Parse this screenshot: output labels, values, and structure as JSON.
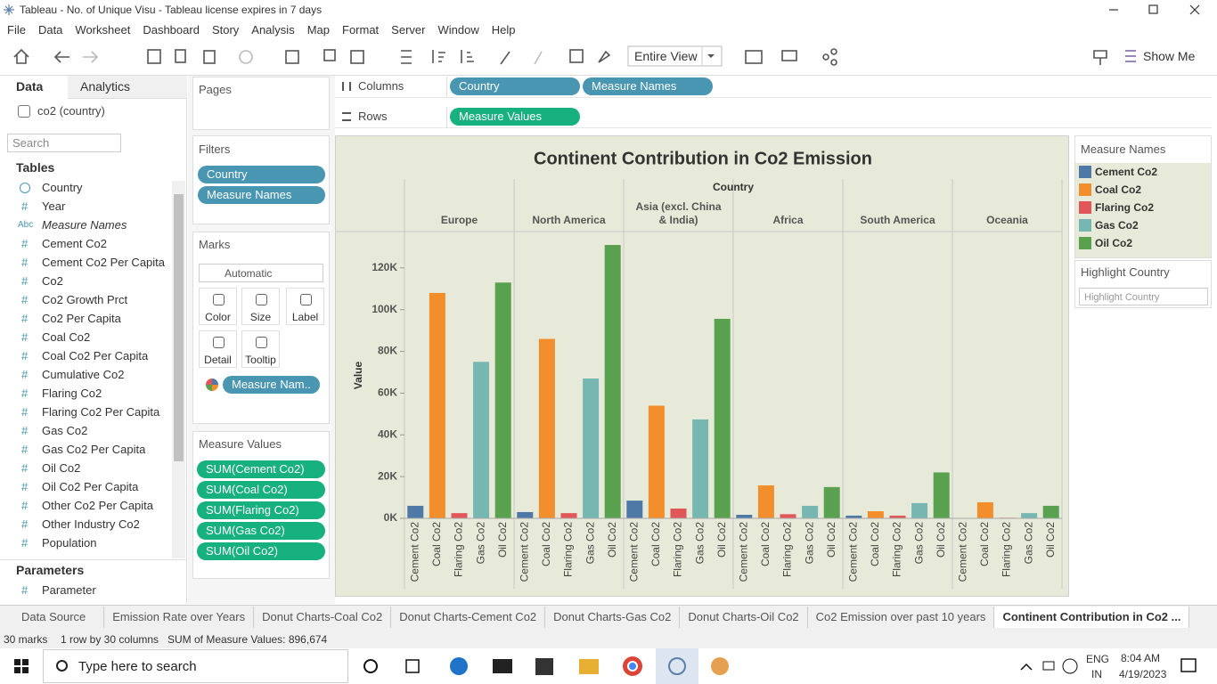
{
  "window": {
    "title": "Tableau - No. of Unique Visu - Tableau license expires in 7 days"
  },
  "menu": [
    "File",
    "Data",
    "Worksheet",
    "Dashboard",
    "Story",
    "Analysis",
    "Map",
    "Format",
    "Server",
    "Window",
    "Help"
  ],
  "toolbar": {
    "view": "Entire View",
    "show_me": "Show Me"
  },
  "data_pane": {
    "tabs": [
      "Data",
      "Analytics"
    ],
    "source": "co2 (country)",
    "search": "Search",
    "tables": "Tables",
    "fields": [
      {
        "name": "Country"
      },
      {
        "icon": "#",
        "name": "Year"
      },
      {
        "icon": "Abc",
        "name": "Measure Names"
      },
      {
        "icon": "#",
        "name": "Cement Co2"
      },
      {
        "icon": "#",
        "name": "Cement Co2 Per Capita"
      },
      {
        "icon": "#",
        "name": "Co2"
      },
      {
        "icon": "#",
        "name": "Co2 Growth Prct"
      },
      {
        "icon": "#",
        "name": "Co2 Per Capita"
      },
      {
        "icon": "#",
        "name": "Coal Co2"
      },
      {
        "icon": "#",
        "name": "Coal Co2 Per Capita"
      },
      {
        "icon": "#",
        "name": "Cumulative Co2"
      },
      {
        "icon": "#",
        "name": "Flaring Co2"
      },
      {
        "icon": "#",
        "name": "Flaring Co2 Per Capita"
      },
      {
        "icon": "#",
        "name": "Gas Co2"
      },
      {
        "icon": "#",
        "name": "Gas Co2 Per Capita"
      },
      {
        "icon": "#",
        "name": "Oil Co2"
      },
      {
        "icon": "#",
        "name": "Oil Co2 Per Capita"
      },
      {
        "icon": "#",
        "name": "Other Co2 Per Capita"
      },
      {
        "icon": "#",
        "name": "Other Industry Co2"
      },
      {
        "icon": "#",
        "name": "Population"
      }
    ],
    "parameters_heading": "Parameters",
    "parameters": [
      {
        "icon": "#",
        "name": "Parameter"
      }
    ]
  },
  "pages_shelf": {
    "title": "Pages"
  },
  "filters_shelf": {
    "title": "Filters",
    "pills": [
      "Country",
      "Measure Names"
    ]
  },
  "marks_card": {
    "title": "Marks",
    "mark_type": "Automatic",
    "buttons": [
      "Color",
      "Size",
      "Label",
      "Detail",
      "Tooltip"
    ],
    "pill": "Measure Nam.."
  },
  "measure_values_shelf": {
    "title": "Measure Values",
    "pills": [
      "SUM(Cement Co2)",
      "SUM(Coal Co2)",
      "SUM(Flaring Co2)",
      "SUM(Gas Co2)",
      "SUM(Oil Co2)"
    ]
  },
  "columns_shelf": {
    "label": "Columns",
    "pills": [
      "Country",
      "Measure Names"
    ]
  },
  "rows_shelf": {
    "label": "Rows",
    "pills": [
      "Measure Values"
    ]
  },
  "chart_data": {
    "type": "bar",
    "title": "Continent Contribution in Co2 Emission",
    "x_label": "Country",
    "y_label": "Value",
    "categories": [
      "Europe",
      "North America",
      "Asia (excl. China & India)",
      "Africa",
      "South America",
      "Oceania"
    ],
    "series": [
      {
        "name": "Cement Co2",
        "color": "#4e79a7",
        "values": [
          6000,
          3000,
          8500,
          1700,
          1300,
          200
        ]
      },
      {
        "name": "Coal Co2",
        "color": "#f28e2b",
        "values": [
          108000,
          86000,
          54000,
          15800,
          3400,
          7700
        ]
      },
      {
        "name": "Flaring Co2",
        "color": "#e15759",
        "values": [
          2500,
          2500,
          4700,
          2000,
          1300,
          300
        ]
      },
      {
        "name": "Gas Co2",
        "color": "#76b7b2",
        "values": [
          75000,
          67000,
          47400,
          6000,
          7300,
          2500
        ]
      },
      {
        "name": "Oil Co2",
        "color": "#59a14f",
        "values": [
          113000,
          131000,
          95600,
          15000,
          22000,
          6000
        ]
      }
    ],
    "ylim": [
      0,
      137000
    ],
    "yticks": [
      {
        "value": 0,
        "label": "0K"
      },
      {
        "value": 20000,
        "label": "20K"
      },
      {
        "value": 40000,
        "label": "40K"
      },
      {
        "value": 60000,
        "label": "60K"
      },
      {
        "value": 80000,
        "label": "80K"
      },
      {
        "value": 100000,
        "label": "100K"
      },
      {
        "value": 120000,
        "label": "120K"
      }
    ],
    "legend_title": "Measure Names",
    "grid": false
  },
  "highlighter": {
    "title": "Highlight Country",
    "placeholder": "Highlight Country"
  },
  "sheet_tabs": [
    "Data Source",
    "Emission Rate over Years",
    "Donut Charts-Coal Co2",
    "Donut Charts-Cement Co2",
    "Donut Charts-Gas Co2",
    "Donut Charts-Oil Co2",
    "Co2 Emission over past 10 years",
    "Continent Contribution in Co2 ..."
  ],
  "active_tab": 7,
  "status": [
    "30 marks",
    "1 row by 30 columns",
    "SUM of Measure Values: 896,674"
  ],
  "taskbar": {
    "search": "Type here to search",
    "language": "ENG",
    "region": "IN",
    "time": "8:04 AM",
    "date": "4/19/2023"
  }
}
